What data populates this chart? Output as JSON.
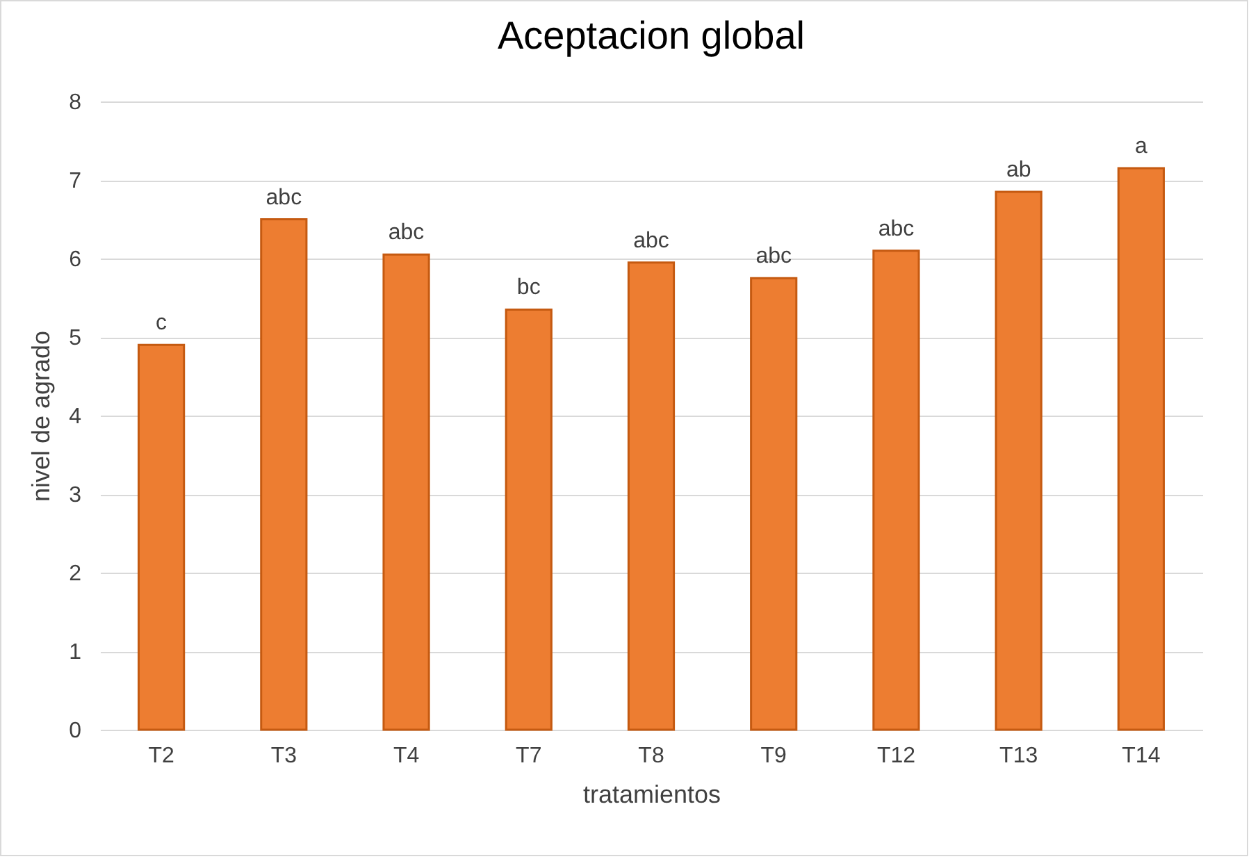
{
  "chart_data": {
    "type": "bar",
    "title": "Aceptacion global",
    "xlabel": "tratamientos",
    "ylabel": "nivel de agrado",
    "categories": [
      "T2",
      "T3",
      "T4",
      "T7",
      "T8",
      "T9",
      "T12",
      "T13",
      "T14"
    ],
    "values": [
      4.9,
      6.5,
      6.05,
      5.35,
      5.95,
      5.75,
      6.1,
      6.85,
      7.15
    ],
    "color": "#ed7d31",
    "ylim": [
      0,
      8
    ],
    "yticks": [
      0,
      1,
      2,
      3,
      4,
      5,
      6,
      7,
      8
    ],
    "grid": "y",
    "annotations": [
      {
        "text": "c",
        "x": "T2",
        "y": 4.9
      },
      {
        "text": "abc",
        "x": "T3",
        "y": 6.5
      },
      {
        "text": "abc",
        "x": "T4",
        "y": 6.05
      },
      {
        "text": "bc",
        "x": "T7",
        "y": 5.35
      },
      {
        "text": "abc",
        "x": "T8",
        "y": 5.95
      },
      {
        "text": "abc",
        "x": "T9",
        "y": 5.75
      },
      {
        "text": "abc",
        "x": "T12",
        "y": 6.1
      },
      {
        "text": "ab",
        "x": "T13",
        "y": 6.85
      },
      {
        "text": "a",
        "x": "T14",
        "y": 7.15
      }
    ]
  }
}
